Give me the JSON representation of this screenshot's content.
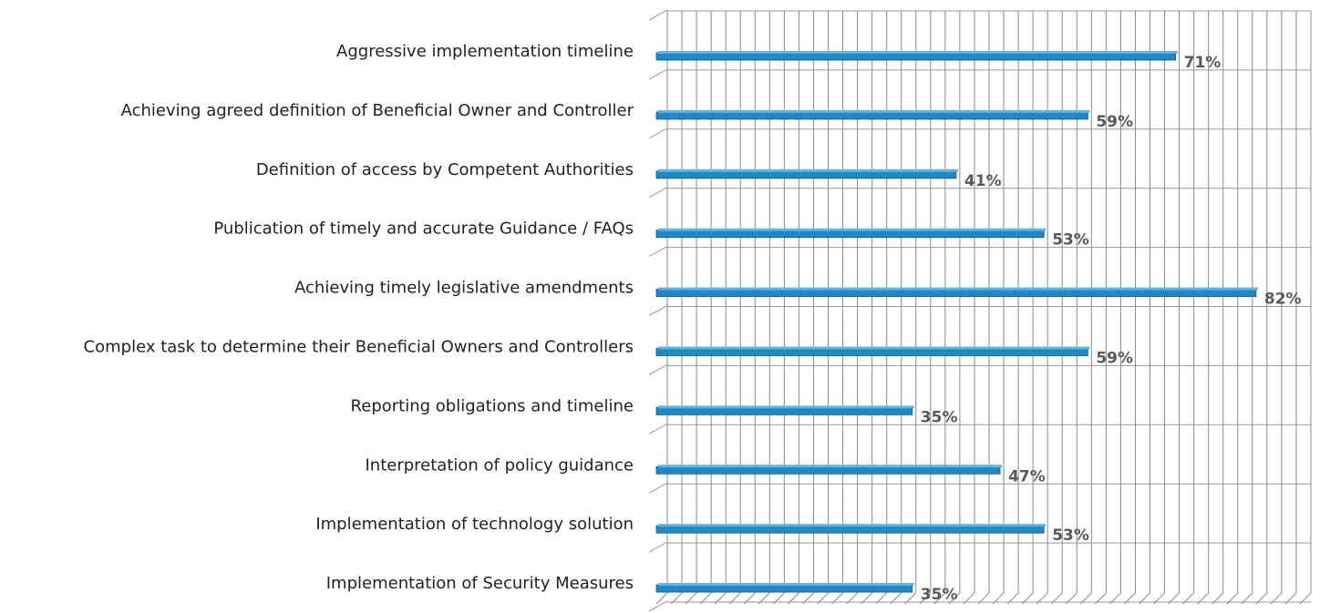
{
  "chart_data": {
    "type": "bar",
    "orientation": "horizontal",
    "categories": [
      "Aggressive implementation timeline",
      "Achieving agreed definition of Beneficial Owner and Controller",
      "Definition of access by Competent Authorities",
      "Publication of timely and accurate Guidance / FAQs",
      "Achieving timely legislative amendments",
      "Complex task to determine their Beneficial Owners and Controllers",
      "Reporting obligations and timeline",
      "Interpretation of policy guidance",
      "Implementation of technology solution",
      "Implementation of Security Measures"
    ],
    "values": [
      71,
      59,
      41,
      53,
      82,
      59,
      35,
      47,
      53,
      35
    ],
    "value_labels": [
      "71%",
      "59%",
      "41%",
      "53%",
      "82%",
      "59%",
      "35%",
      "47%",
      "53%",
      "35%"
    ],
    "color": "#1f88c8",
    "xlim": [
      0,
      88
    ],
    "xticks": [
      0,
      2,
      4,
      6,
      8,
      10,
      12,
      14,
      16,
      18,
      20,
      22,
      24,
      26,
      28,
      30,
      32,
      34,
      36,
      38,
      40,
      42,
      44,
      46,
      48,
      50,
      52,
      54,
      56,
      58,
      60,
      62,
      64,
      66,
      68,
      70,
      72,
      74,
      76,
      78,
      80,
      82,
      84,
      86,
      88
    ],
    "grid": true
  }
}
